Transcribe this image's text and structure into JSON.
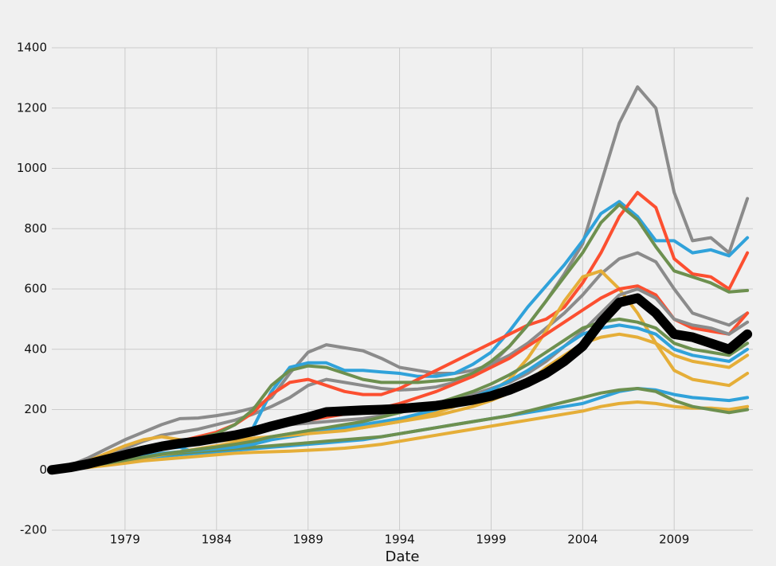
{
  "chart_data": {
    "type": "line",
    "xlabel": "Date",
    "x": [
      1975,
      1976,
      1977,
      1978,
      1979,
      1980,
      1981,
      1982,
      1983,
      1984,
      1985,
      1986,
      1987,
      1988,
      1989,
      1990,
      1991,
      1992,
      1993,
      1994,
      1995,
      1996,
      1997,
      1998,
      1999,
      2000,
      2001,
      2002,
      2003,
      2004,
      2005,
      2006,
      2007,
      2008,
      2009,
      2010,
      2011,
      2012,
      2013
    ],
    "xlim": [
      1975,
      2013.3
    ],
    "xticks": [
      1979,
      1984,
      1989,
      1994,
      1999,
      2004,
      2009
    ],
    "ylim": [
      -200,
      1400
    ],
    "yticks": [
      -200,
      0,
      200,
      400,
      600,
      800,
      1000,
      1200,
      1400
    ],
    "grid": true,
    "series": [
      {
        "color": "#8b8b8b",
        "width": 4,
        "values": [
          0,
          10,
          25,
          45,
          70,
          95,
          115,
          125,
          135,
          150,
          165,
          185,
          210,
          240,
          280,
          300,
          290,
          280,
          270,
          265,
          268,
          275,
          290,
          310,
          350,
          410,
          480,
          560,
          650,
          750,
          950,
          1150,
          1270,
          1200,
          920,
          760,
          770,
          720,
          900
        ]
      },
      {
        "color": "#8b8b8b",
        "width": 4,
        "values": [
          0,
          15,
          40,
          70,
          100,
          125,
          150,
          170,
          172,
          180,
          190,
          205,
          240,
          320,
          390,
          415,
          405,
          395,
          370,
          340,
          330,
          320,
          320,
          330,
          350,
          380,
          420,
          470,
          520,
          580,
          650,
          700,
          720,
          690,
          600,
          520,
          500,
          480,
          520
        ]
      },
      {
        "color": "#30a2da",
        "width": 4,
        "values": [
          0,
          5,
          20,
          35,
          50,
          60,
          70,
          75,
          55,
          60,
          80,
          140,
          260,
          340,
          355,
          355,
          330,
          330,
          325,
          320,
          310,
          310,
          320,
          350,
          390,
          460,
          540,
          610,
          680,
          760,
          850,
          890,
          840,
          760,
          760,
          720,
          730,
          710,
          770
        ]
      },
      {
        "color": "#fc4f30",
        "width": 4,
        "values": [
          0,
          5,
          15,
          30,
          50,
          70,
          85,
          95,
          110,
          125,
          150,
          190,
          250,
          290,
          300,
          280,
          260,
          250,
          250,
          270,
          300,
          330,
          360,
          390,
          420,
          450,
          480,
          500,
          540,
          620,
          720,
          840,
          920,
          870,
          700,
          650,
          640,
          600,
          720
        ]
      },
      {
        "color": "#6d904f",
        "width": 4,
        "values": [
          0,
          10,
          25,
          45,
          60,
          75,
          85,
          95,
          105,
          120,
          150,
          200,
          280,
          330,
          345,
          340,
          320,
          300,
          290,
          290,
          290,
          295,
          300,
          320,
          360,
          410,
          480,
          560,
          640,
          720,
          820,
          880,
          830,
          740,
          660,
          640,
          620,
          590,
          595
        ]
      },
      {
        "color": "#e5ae38",
        "width": 4,
        "values": [
          0,
          10,
          30,
          55,
          80,
          100,
          110,
          100,
          90,
          95,
          100,
          105,
          110,
          120,
          125,
          130,
          135,
          140,
          150,
          160,
          175,
          190,
          210,
          230,
          260,
          300,
          370,
          460,
          560,
          640,
          660,
          600,
          520,
          420,
          330,
          300,
          290,
          280,
          320
        ]
      },
      {
        "color": "#30a2da",
        "width": 4,
        "values": [
          0,
          3,
          10,
          20,
          30,
          40,
          45,
          50,
          55,
          60,
          65,
          70,
          75,
          80,
          85,
          90,
          95,
          100,
          110,
          120,
          130,
          140,
          150,
          160,
          170,
          180,
          190,
          200,
          210,
          220,
          240,
          260,
          270,
          265,
          250,
          240,
          235,
          230,
          240
        ]
      },
      {
        "color": "#e5ae38",
        "width": 4,
        "values": [
          0,
          3,
          8,
          15,
          22,
          30,
          35,
          40,
          45,
          50,
          55,
          58,
          60,
          62,
          65,
          68,
          72,
          78,
          85,
          95,
          105,
          115,
          125,
          135,
          145,
          155,
          165,
          175,
          185,
          195,
          210,
          220,
          225,
          220,
          210,
          205,
          205,
          200,
          210
        ]
      },
      {
        "color": "#6d904f",
        "width": 4,
        "values": [
          0,
          5,
          12,
          20,
          30,
          40,
          50,
          55,
          60,
          65,
          70,
          75,
          80,
          85,
          90,
          95,
          100,
          105,
          110,
          120,
          130,
          140,
          150,
          160,
          170,
          180,
          195,
          210,
          225,
          240,
          255,
          265,
          270,
          260,
          230,
          210,
          200,
          190,
          200
        ]
      },
      {
        "color": "#fc4f30",
        "width": 4,
        "values": [
          0,
          5,
          15,
          30,
          45,
          60,
          75,
          85,
          95,
          105,
          115,
          125,
          140,
          155,
          165,
          175,
          185,
          195,
          205,
          220,
          240,
          260,
          285,
          310,
          340,
          370,
          410,
          450,
          490,
          530,
          570,
          600,
          610,
          580,
          500,
          470,
          460,
          450,
          520
        ]
      },
      {
        "color": "#8b8b8b",
        "width": 4,
        "values": [
          0,
          5,
          15,
          30,
          45,
          60,
          70,
          80,
          90,
          100,
          110,
          125,
          140,
          150,
          155,
          160,
          165,
          170,
          180,
          190,
          205,
          220,
          235,
          250,
          270,
          290,
          320,
          360,
          410,
          460,
          520,
          580,
          600,
          570,
          500,
          480,
          470,
          450,
          490
        ]
      },
      {
        "color": "#30a2da",
        "width": 4,
        "values": [
          0,
          5,
          12,
          22,
          35,
          45,
          55,
          60,
          65,
          70,
          75,
          85,
          100,
          110,
          120,
          130,
          140,
          150,
          160,
          170,
          185,
          200,
          220,
          240,
          265,
          295,
          330,
          370,
          410,
          450,
          470,
          480,
          470,
          450,
          400,
          380,
          370,
          360,
          400
        ]
      },
      {
        "color": "#e5ae38",
        "width": 4,
        "values": [
          0,
          4,
          10,
          20,
          30,
          40,
          50,
          60,
          70,
          80,
          90,
          100,
          110,
          115,
          120,
          125,
          130,
          140,
          150,
          160,
          170,
          180,
          195,
          210,
          230,
          255,
          290,
          340,
          380,
          420,
          440,
          450,
          440,
          420,
          380,
          360,
          350,
          340,
          380
        ]
      },
      {
        "color": "#6d904f",
        "width": 4,
        "values": [
          0,
          5,
          12,
          22,
          32,
          42,
          52,
          60,
          68,
          76,
          85,
          95,
          110,
          120,
          130,
          140,
          150,
          160,
          175,
          190,
          205,
          220,
          240,
          260,
          285,
          315,
          350,
          390,
          430,
          470,
          490,
          500,
          490,
          470,
          420,
          400,
          390,
          380,
          420
        ]
      },
      {
        "color": "#000000",
        "width": 12,
        "values": [
          0,
          8,
          20,
          35,
          50,
          65,
          78,
          88,
          95,
          105,
          115,
          128,
          145,
          160,
          175,
          192,
          195,
          198,
          200,
          203,
          208,
          213,
          222,
          232,
          245,
          265,
          290,
          320,
          360,
          410,
          490,
          555,
          570,
          520,
          450,
          440,
          420,
          400,
          450
        ]
      }
    ]
  }
}
